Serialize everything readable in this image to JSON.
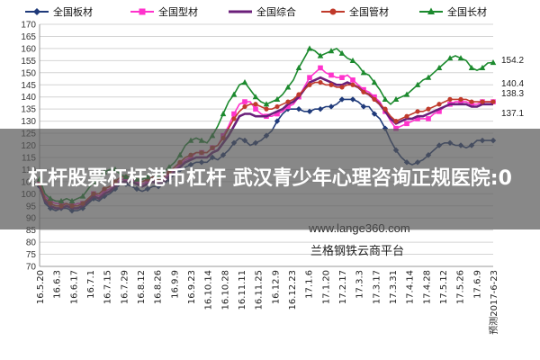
{
  "chart_data": {
    "type": "line",
    "title": "",
    "xlabel": "",
    "ylabel": "",
    "ylim": [
      70,
      170
    ],
    "yticks": [
      70,
      75,
      80,
      85,
      90,
      95,
      100,
      105,
      110,
      115,
      120,
      125,
      130,
      135,
      140,
      145,
      150,
      155,
      160,
      165,
      170
    ],
    "grid": true,
    "legend_position": "top",
    "x_tick_labels": [
      "16.5.20",
      "16.6.3",
      "16.6.17",
      "16.7.1",
      "16.7.15",
      "16.7.29",
      "16.8.12",
      "16.8.26",
      "16.9.9",
      "16.9.23",
      "16.10.14",
      "16.10.28",
      "16.11.11",
      "16.11.25",
      "16.12.9",
      "16.12.23",
      "17.1.6",
      "17.1.20",
      "17.2.17",
      "17.3.3",
      "17.3.17",
      "17.3.31",
      "17.4.14",
      "17.4.28",
      "17.5.12",
      "17.5.26",
      "17.6.9",
      "预测2017-6-23"
    ],
    "end_labels": [
      "154.2",
      "140.4",
      "138.3",
      "137.1"
    ],
    "series": [
      {
        "name": "全国板材",
        "color": "#1f3a7a",
        "marker": "diamond",
        "values": [
          103,
          96,
          94,
          93,
          94,
          94,
          93,
          93,
          94,
          96,
          98,
          97,
          99,
          100,
          102,
          104,
          104,
          103,
          102,
          101,
          102,
          103,
          103,
          104,
          106,
          108,
          110,
          111,
          112,
          113,
          113,
          113,
          115,
          114,
          116,
          118,
          121,
          123,
          122,
          120,
          121,
          122,
          124,
          126,
          130,
          133,
          135,
          135,
          135,
          134,
          134,
          135,
          135,
          136,
          136,
          137,
          139,
          139,
          139,
          138,
          136,
          136,
          133,
          131,
          127,
          122,
          118,
          115,
          113,
          112,
          113,
          114,
          116,
          118,
          120,
          121,
          121,
          120,
          120,
          119,
          120,
          122,
          122,
          122,
          122
        ]
      },
      {
        "name": "全国型材",
        "color": "#ff33cc",
        "marker": "square",
        "values": [
          105,
          99,
          97,
          96,
          96,
          96,
          95,
          96,
          96,
          98,
          100,
          99,
          101,
          102,
          104,
          106,
          106,
          106,
          105,
          104,
          105,
          106,
          105,
          106,
          108,
          110,
          112,
          114,
          115,
          117,
          117,
          117,
          119,
          120,
          124,
          128,
          133,
          137,
          138,
          138,
          135,
          133,
          132,
          132,
          133,
          134,
          136,
          137,
          140,
          144,
          148,
          150,
          152,
          150,
          149,
          148,
          148,
          149,
          147,
          145,
          143,
          142,
          140,
          138,
          134,
          130,
          127,
          128,
          129,
          130,
          131,
          131,
          131,
          133,
          134,
          136,
          137,
          138,
          138,
          138,
          137,
          137,
          138,
          138,
          138
        ]
      },
      {
        "name": "全国综合",
        "color": "#6b1f7a",
        "marker": "none",
        "values": [
          103,
          97,
          95,
          94,
          94,
          95,
          94,
          94,
          95,
          97,
          99,
          98,
          100,
          101,
          103,
          105,
          105,
          105,
          104,
          103,
          104,
          105,
          104,
          105,
          107,
          109,
          111,
          113,
          114,
          115,
          115,
          115,
          117,
          118,
          121,
          124,
          128,
          132,
          133,
          133,
          132,
          132,
          132,
          133,
          134,
          135,
          137,
          138,
          140,
          143,
          146,
          147,
          148,
          147,
          146,
          145,
          145,
          146,
          145,
          144,
          142,
          141,
          139,
          137,
          134,
          131,
          129,
          130,
          131,
          131,
          132,
          132,
          133,
          134,
          135,
          136,
          137,
          137,
          137,
          137,
          136,
          136,
          137,
          137,
          137
        ]
      },
      {
        "name": "全国管材",
        "color": "#c03a2b",
        "marker": "circle",
        "values": [
          104,
          98,
          96,
          95,
          95,
          96,
          95,
          95,
          96,
          98,
          100,
          100,
          102,
          103,
          105,
          107,
          107,
          107,
          106,
          105,
          106,
          107,
          106,
          107,
          109,
          111,
          113,
          115,
          116,
          117,
          117,
          117,
          119,
          120,
          123,
          127,
          131,
          134,
          136,
          137,
          137,
          136,
          135,
          135,
          136,
          137,
          138,
          139,
          141,
          143,
          145,
          146,
          146,
          145,
          145,
          144,
          144,
          145,
          145,
          144,
          142,
          141,
          139,
          137,
          135,
          132,
          130,
          131,
          132,
          133,
          134,
          134,
          135,
          136,
          137,
          138,
          139,
          139,
          139,
          139,
          138,
          138,
          138,
          138,
          138
        ]
      },
      {
        "name": "全国长材",
        "color": "#1c8a2e",
        "marker": "triangle",
        "values": [
          106,
          100,
          98,
          97,
          97,
          98,
          97,
          98,
          99,
          102,
          105,
          106,
          109,
          110,
          110,
          108,
          107,
          107,
          106,
          106,
          107,
          108,
          107,
          109,
          111,
          113,
          116,
          120,
          122,
          123,
          122,
          121,
          124,
          128,
          133,
          138,
          141,
          145,
          146,
          143,
          140,
          138,
          137,
          138,
          139,
          141,
          144,
          147,
          152,
          156,
          160,
          159,
          157,
          158,
          159,
          160,
          158,
          156,
          155,
          153,
          150,
          149,
          146,
          143,
          139,
          137,
          139,
          140,
          141,
          143,
          145,
          147,
          148,
          150,
          152,
          154,
          156,
          157,
          156,
          155,
          152,
          151,
          152,
          154,
          154.2
        ]
      }
    ]
  },
  "watermark": {
    "url": "www.lange360.com",
    "platform": "兰格钢铁云商平台"
  },
  "banner": {
    "text": "杠杆股票杠杆港币杠杆 武汉青少年心理咨询正规医院:0"
  }
}
